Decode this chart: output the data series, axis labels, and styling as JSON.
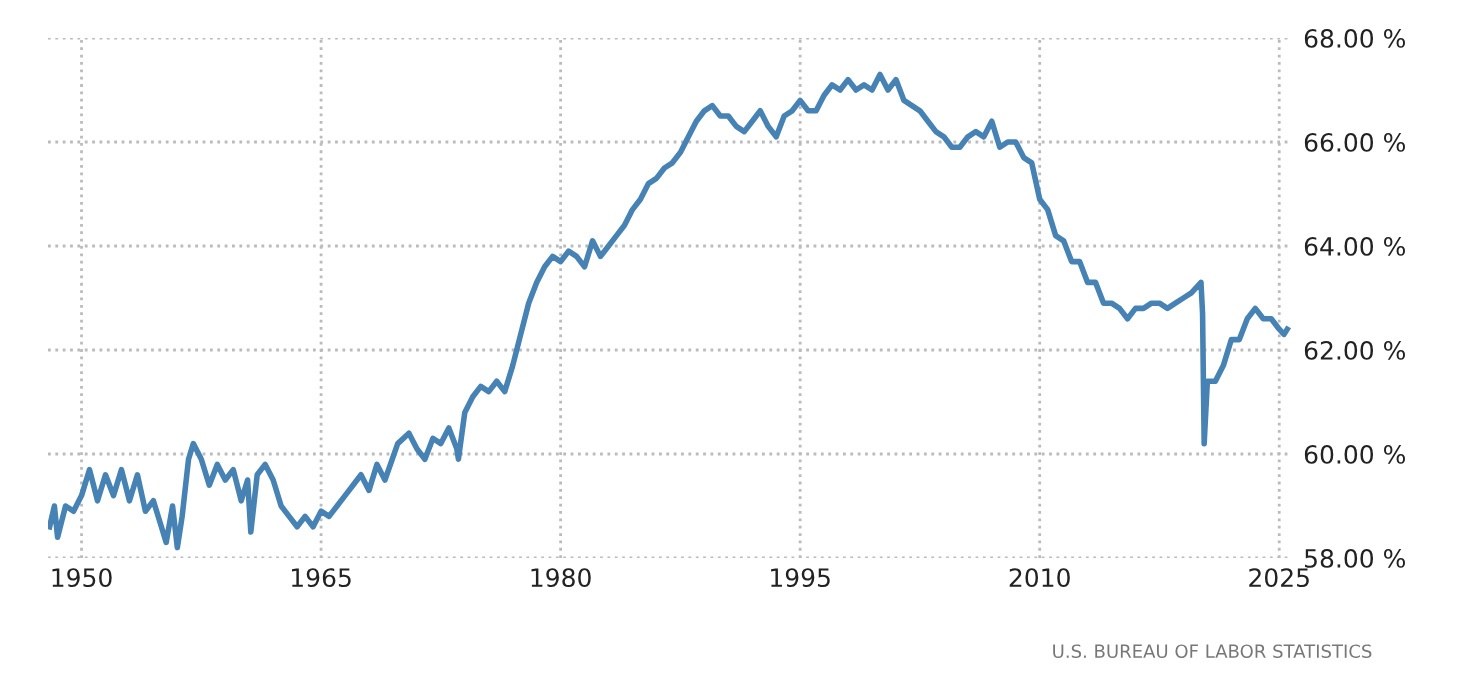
{
  "chart_data": {
    "type": "line",
    "x": [
      1948.0,
      1948.3,
      1948.5,
      1949,
      1949.5,
      1950,
      1950.5,
      1951,
      1951.5,
      1952,
      1952.5,
      1953,
      1953.5,
      1954,
      1954.5,
      1955,
      1955.3,
      1955.7,
      1956,
      1956.3,
      1956.7,
      1957,
      1957.5,
      1958,
      1958.5,
      1959,
      1959.5,
      1960,
      1960.4,
      1960.6,
      1961,
      1961.5,
      1962,
      1962.5,
      1963,
      1963.5,
      1964,
      1964.5,
      1965,
      1965.5,
      1966,
      1966.5,
      1967,
      1967.5,
      1968,
      1968.5,
      1969,
      1969.8,
      1970.5,
      1971,
      1971.5,
      1972,
      1972.5,
      1973,
      1973.5,
      1973.6,
      1974,
      1974.5,
      1975,
      1975.5,
      1976,
      1976.5,
      1977,
      1977.5,
      1978,
      1978.5,
      1979,
      1979.5,
      1980,
      1980.5,
      1981,
      1981.5,
      1982,
      1982.5,
      1983,
      1983.5,
      1984,
      1984.5,
      1985,
      1985.5,
      1986,
      1986.5,
      1987,
      1987.5,
      1988,
      1988.5,
      1989,
      1989.5,
      1990,
      1990.5,
      1991,
      1991.5,
      1992,
      1992.5,
      1993,
      1993.5,
      1994,
      1994.5,
      1995,
      1995.5,
      1996,
      1996.5,
      1997,
      1997.5,
      1998,
      1998.5,
      1999,
      1999.5,
      2000,
      2000.5,
      2001,
      2001.5,
      2002,
      2002.5,
      2003,
      2003.5,
      2004,
      2004.5,
      2005,
      2005.5,
      2006,
      2006.5,
      2007,
      2007.5,
      2008,
      2008.5,
      2009,
      2009.5,
      2010,
      2010.5,
      2011,
      2011.5,
      2012,
      2012.5,
      2013,
      2013.5,
      2014,
      2014.5,
      2015,
      2015.5,
      2016,
      2016.5,
      2017,
      2017.5,
      2018,
      2018.5,
      2019,
      2019.5,
      2020.1,
      2020.2,
      2020.3,
      2020.5,
      2021,
      2021.5,
      2022,
      2022.5,
      2023,
      2023.5,
      2024,
      2024.5,
      2025,
      2025.3,
      2025.5
    ],
    "series": [
      {
        "color": "#4682b4",
        "values": [
          58.6,
          59.0,
          58.4,
          59.0,
          58.9,
          59.2,
          59.7,
          59.1,
          59.6,
          59.2,
          59.7,
          59.1,
          59.6,
          58.9,
          59.1,
          58.6,
          58.3,
          59.0,
          58.2,
          58.8,
          59.9,
          60.2,
          59.9,
          59.4,
          59.8,
          59.5,
          59.7,
          59.1,
          59.5,
          58.5,
          59.6,
          59.8,
          59.5,
          59.0,
          58.8,
          58.6,
          58.8,
          58.6,
          58.9,
          58.8,
          59.0,
          59.2,
          59.4,
          59.6,
          59.3,
          59.8,
          59.5,
          60.2,
          60.4,
          60.1,
          59.9,
          60.3,
          60.2,
          60.5,
          60.1,
          59.9,
          60.8,
          61.1,
          61.3,
          61.2,
          61.4,
          61.2,
          61.7,
          62.3,
          62.9,
          63.3,
          63.6,
          63.8,
          63.7,
          63.9,
          63.8,
          63.6,
          64.1,
          63.8,
          64.0,
          64.2,
          64.4,
          64.7,
          64.9,
          65.2,
          65.3,
          65.5,
          65.6,
          65.8,
          66.1,
          66.4,
          66.6,
          66.7,
          66.5,
          66.5,
          66.3,
          66.2,
          66.4,
          66.6,
          66.3,
          66.1,
          66.5,
          66.6,
          66.8,
          66.6,
          66.6,
          66.9,
          67.1,
          67.0,
          67.2,
          67.0,
          67.1,
          67.0,
          67.3,
          67.0,
          67.2,
          66.8,
          66.7,
          66.6,
          66.4,
          66.2,
          66.1,
          65.9,
          65.9,
          66.1,
          66.2,
          66.1,
          66.4,
          65.9,
          66.0,
          66.0,
          65.7,
          65.6,
          64.9,
          64.7,
          64.2,
          64.1,
          63.7,
          63.7,
          63.3,
          63.3,
          62.9,
          62.9,
          62.8,
          62.6,
          62.8,
          62.8,
          62.9,
          62.9,
          62.8,
          62.9,
          63.0,
          63.1,
          63.3,
          62.7,
          60.2,
          61.4,
          61.4,
          61.7,
          62.2,
          62.2,
          62.6,
          62.8,
          62.6,
          62.6,
          62.4,
          62.3,
          62.4
        ]
      }
    ],
    "xlim": [
      1947.9,
      2025.8
    ],
    "xticks": [
      1950,
      1965,
      1980,
      1995,
      2010,
      2025
    ],
    "ylim": [
      58,
      68
    ],
    "yticks": [
      {
        "value": 58,
        "label": "58.00 %"
      },
      {
        "value": 60,
        "label": "60.00 %"
      },
      {
        "value": 62,
        "label": "62.00 %"
      },
      {
        "value": 64,
        "label": "64.00 %"
      },
      {
        "value": 66,
        "label": "66.00 %"
      },
      {
        "value": 68,
        "label": "68.00 %"
      }
    ],
    "grid": true,
    "line_style": "solid",
    "annotations": [
      "U.S. BUREAU OF LABOR STATISTICS"
    ]
  }
}
